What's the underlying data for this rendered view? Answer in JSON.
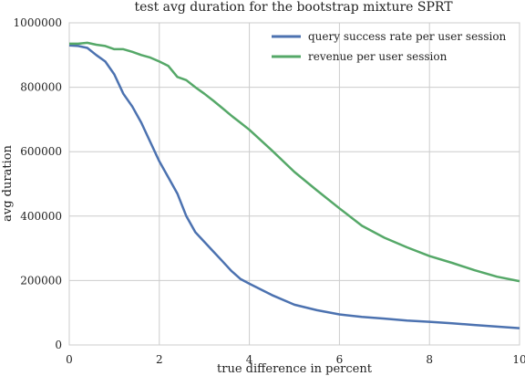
{
  "chart_data": {
    "type": "line",
    "title": "test avg duration for the bootstrap mixture SPRT",
    "xlabel": "true difference in percent",
    "ylabel": "avg duration",
    "xlim": [
      0,
      10
    ],
    "ylim": [
      0,
      1000000
    ],
    "xticks": [
      0,
      2,
      4,
      6,
      8,
      10
    ],
    "xtick_labels": [
      "0",
      "2",
      "4",
      "6",
      "8",
      "10"
    ],
    "yticks": [
      0,
      200000,
      400000,
      600000,
      800000,
      1000000
    ],
    "ytick_labels": [
      "0",
      "200000",
      "400000",
      "600000",
      "800000",
      "1000000"
    ],
    "grid": true,
    "legend_position": "top-right",
    "series": [
      {
        "name": "query success rate per user session",
        "color": "#4c72b0",
        "x": [
          0,
          0.2,
          0.4,
          0.6,
          0.8,
          1.0,
          1.2,
          1.4,
          1.6,
          1.8,
          2.0,
          2.2,
          2.4,
          2.6,
          2.8,
          3.0,
          3.2,
          3.4,
          3.6,
          3.8,
          4.0,
          4.5,
          5.0,
          5.5,
          6.0,
          6.5,
          7.0,
          7.5,
          8.0,
          8.5,
          9.0,
          9.5,
          10.0
        ],
        "y": [
          930000,
          928000,
          922000,
          900000,
          880000,
          840000,
          780000,
          740000,
          690000,
          630000,
          570000,
          520000,
          470000,
          400000,
          350000,
          320000,
          290000,
          260000,
          230000,
          205000,
          190000,
          155000,
          125000,
          108000,
          95000,
          87000,
          82000,
          76000,
          72000,
          67000,
          62000,
          57000,
          52000
        ]
      },
      {
        "name": "revenue per user session",
        "color": "#55a868",
        "x": [
          0,
          0.2,
          0.4,
          0.6,
          0.8,
          1.0,
          1.2,
          1.4,
          1.6,
          1.8,
          2.0,
          2.2,
          2.4,
          2.6,
          2.8,
          3.0,
          3.2,
          3.4,
          3.6,
          3.8,
          4.0,
          4.5,
          5.0,
          5.5,
          6.0,
          6.5,
          7.0,
          7.5,
          8.0,
          8.5,
          9.0,
          9.5,
          10.0
        ],
        "y": [
          935000,
          935000,
          938000,
          932000,
          928000,
          918000,
          918000,
          910000,
          900000,
          892000,
          880000,
          866000,
          832000,
          822000,
          800000,
          780000,
          758000,
          735000,
          712000,
          690000,
          668000,
          604000,
          537000,
          480000,
          424000,
          370000,
          333000,
          303000,
          276000,
          255000,
          232000,
          212000,
          198000
        ]
      }
    ]
  }
}
